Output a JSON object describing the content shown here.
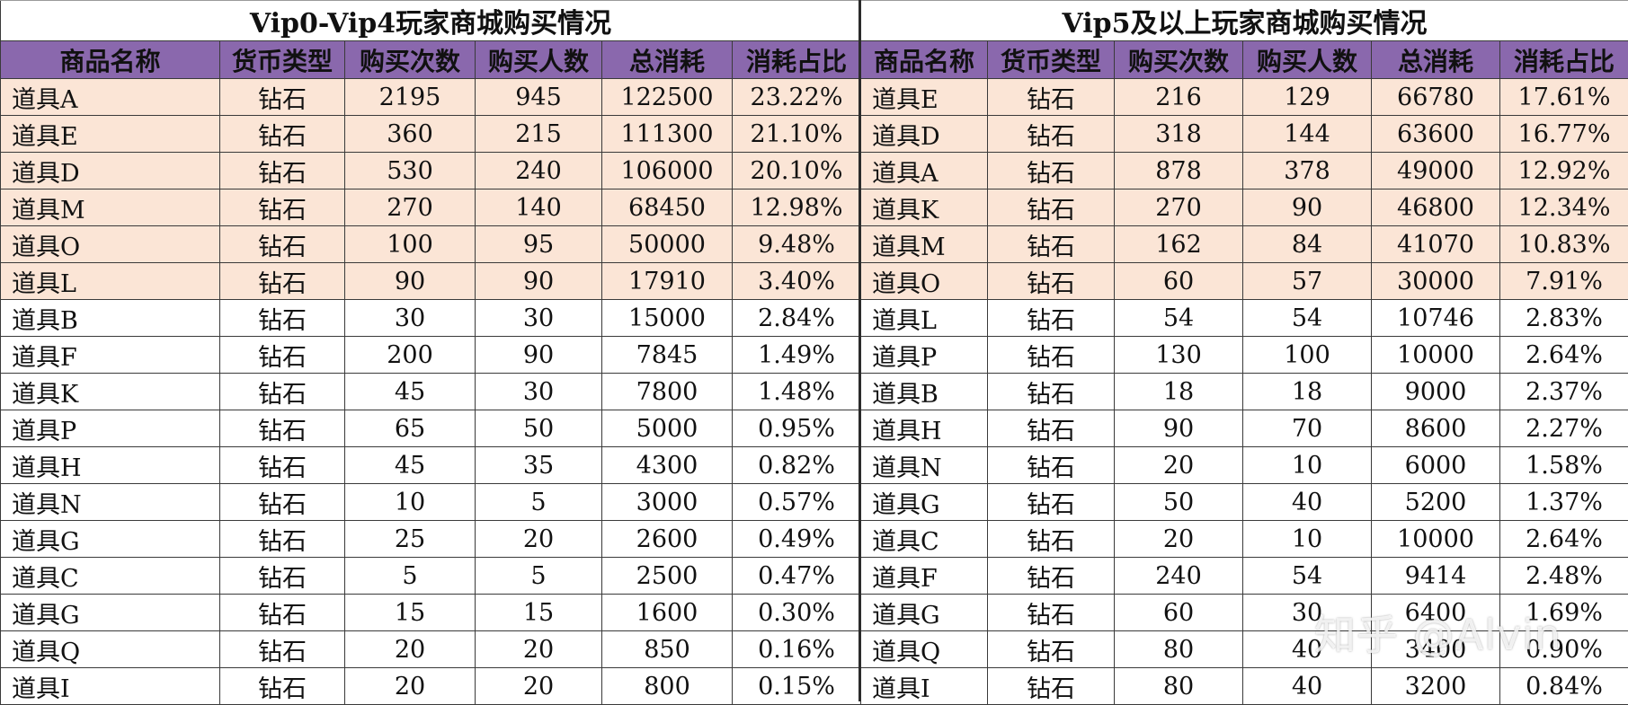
{
  "left_table": {
    "title": "Vip0-Vip4玩家商城购买情况",
    "columns": [
      "商品名称",
      "货币类型",
      "购买次数",
      "购买人数",
      "总消耗",
      "消耗占比"
    ],
    "rows": [
      [
        "道具A",
        "钻石",
        "2195",
        "945",
        "122500",
        "23.22%"
      ],
      [
        "道具E",
        "钻石",
        "360",
        "215",
        "111300",
        "21.10%"
      ],
      [
        "道具D",
        "钻石",
        "530",
        "240",
        "106000",
        "20.10%"
      ],
      [
        "道具M",
        "钻石",
        "270",
        "140",
        "68450",
        "12.98%"
      ],
      [
        "道具O",
        "钻石",
        "100",
        "95",
        "50000",
        "9.48%"
      ],
      [
        "道具L",
        "钻石",
        "90",
        "90",
        "17910",
        "3.40%"
      ],
      [
        "道具B",
        "钻石",
        "30",
        "30",
        "15000",
        "2.84%"
      ],
      [
        "道具F",
        "钻石",
        "200",
        "90",
        "7845",
        "1.49%"
      ],
      [
        "道具K",
        "钻石",
        "45",
        "30",
        "7800",
        "1.48%"
      ],
      [
        "道具P",
        "钻石",
        "65",
        "50",
        "5000",
        "0.95%"
      ],
      [
        "道具H",
        "钻石",
        "45",
        "35",
        "4300",
        "0.82%"
      ],
      [
        "道具N",
        "钻石",
        "10",
        "5",
        "3000",
        "0.57%"
      ],
      [
        "道具G",
        "钻石",
        "25",
        "20",
        "2600",
        "0.49%"
      ],
      [
        "道具C",
        "钻石",
        "5",
        "5",
        "2500",
        "0.47%"
      ],
      [
        "道具G",
        "钻石",
        "15",
        "15",
        "1600",
        "0.30%"
      ],
      [
        "道具Q",
        "钻石",
        "20",
        "20",
        "850",
        "0.16%"
      ],
      [
        "道具I",
        "钻石",
        "20",
        "20",
        "800",
        "0.15%"
      ]
    ],
    "highlighted_rows": 6
  },
  "right_table": {
    "title": "Vip5及以上玩家商城购买情况",
    "columns": [
      "商品名称",
      "货币类型",
      "购买次数",
      "购买人数",
      "总消耗",
      "消耗占比"
    ],
    "rows": [
      [
        "道具E",
        "钻石",
        "216",
        "129",
        "66780",
        "17.61%"
      ],
      [
        "道具D",
        "钻石",
        "318",
        "144",
        "63600",
        "16.77%"
      ],
      [
        "道具A",
        "钻石",
        "878",
        "378",
        "49000",
        "12.92%"
      ],
      [
        "道具K",
        "钻石",
        "270",
        "90",
        "46800",
        "12.34%"
      ],
      [
        "道具M",
        "钻石",
        "162",
        "84",
        "41070",
        "10.83%"
      ],
      [
        "道具O",
        "钻石",
        "60",
        "57",
        "30000",
        "7.91%"
      ],
      [
        "道具L",
        "钻石",
        "54",
        "54",
        "10746",
        "2.83%"
      ],
      [
        "道具P",
        "钻石",
        "130",
        "100",
        "10000",
        "2.64%"
      ],
      [
        "道具B",
        "钻石",
        "18",
        "18",
        "9000",
        "2.37%"
      ],
      [
        "道具H",
        "钻石",
        "90",
        "70",
        "8600",
        "2.27%"
      ],
      [
        "道具N",
        "钻石",
        "20",
        "10",
        "6000",
        "1.58%"
      ],
      [
        "道具G",
        "钻石",
        "50",
        "40",
        "5200",
        "1.37%"
      ],
      [
        "道具C",
        "钻石",
        "20",
        "10",
        "10000",
        "2.64%"
      ],
      [
        "道具F",
        "钻石",
        "240",
        "54",
        "9414",
        "2.48%"
      ],
      [
        "道具G",
        "钻石",
        "60",
        "30",
        "6400",
        "1.69%"
      ],
      [
        "道具Q",
        "钻石",
        "80",
        "40",
        "3400",
        "0.90%"
      ],
      [
        "道具I",
        "钻石",
        "80",
        "40",
        "3200",
        "0.84%"
      ]
    ],
    "highlighted_rows": 6
  },
  "colors": {
    "header_bg": "#8a68ad",
    "highlight_bg": "#fbe5d6",
    "border": "#3a3a3a"
  },
  "watermark": "知乎 @Alvin"
}
